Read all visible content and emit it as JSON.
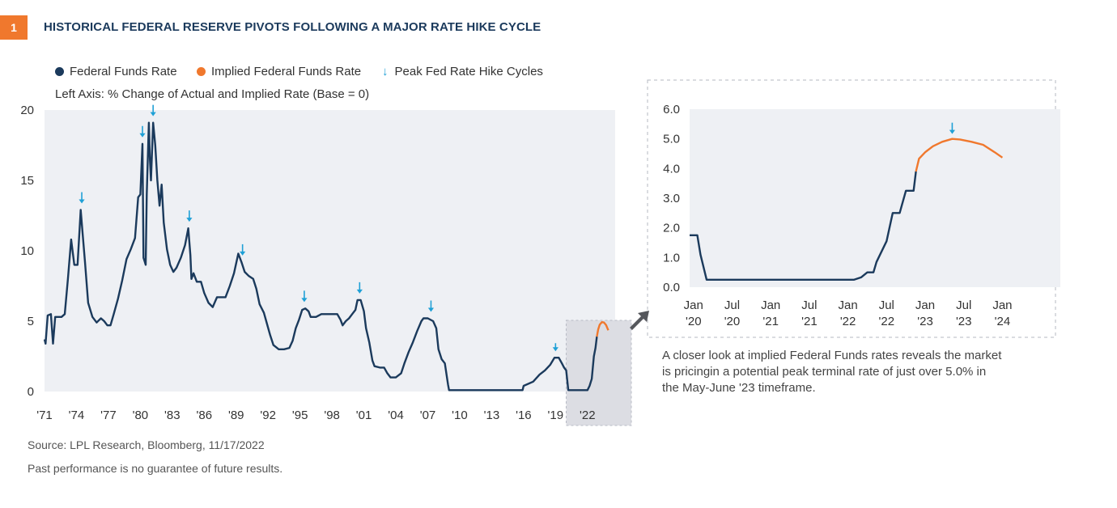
{
  "figure_number": "1",
  "title": "HISTORICAL FEDERAL RESERVE PIVOTS FOLLOWING A MAJOR RATE HIKE CYCLE",
  "legend": [
    {
      "label": "Federal Funds Rate",
      "color": "#1b3a5c",
      "marker": "dot"
    },
    {
      "label": "Implied Federal Funds Rate",
      "color": "#f0782d",
      "marker": "dot"
    },
    {
      "label": "Peak Fed Rate Hike Cycles",
      "color": "#1fa0d6",
      "marker": "down-arrow-icon"
    }
  ],
  "axis_note": "Left Axis: % Change of Actual and Implied Rate (Base = 0)",
  "colors": {
    "ffr": "#1b3a5c",
    "implied": "#f0782d",
    "peak_arrow": "#1fa0d6",
    "plot_bg": "#eef0f4",
    "highlight_bg": "#dcdde3",
    "accent": "#f0782d"
  },
  "chart_data": [
    {
      "type": "line",
      "xlim": [
        1971,
        2024.6
      ],
      "ylim": [
        0,
        20
      ],
      "yticks": [
        0,
        5,
        10,
        15,
        20
      ],
      "xticks": [
        {
          "x": 1971,
          "label": "'71"
        },
        {
          "x": 1974,
          "label": "'74"
        },
        {
          "x": 1977,
          "label": "'77"
        },
        {
          "x": 1980,
          "label": "'80"
        },
        {
          "x": 1983,
          "label": "'83"
        },
        {
          "x": 1986,
          "label": "'86"
        },
        {
          "x": 1989,
          "label": "'89"
        },
        {
          "x": 1992,
          "label": "'92"
        },
        {
          "x": 1995,
          "label": "'95"
        },
        {
          "x": 1998,
          "label": "'98"
        },
        {
          "x": 2001,
          "label": "'01"
        },
        {
          "x": 2004,
          "label": "'04"
        },
        {
          "x": 2007,
          "label": "'07"
        },
        {
          "x": 2010,
          "label": "'10"
        },
        {
          "x": 2013,
          "label": "'13"
        },
        {
          "x": 2016,
          "label": "'16"
        },
        {
          "x": 2019,
          "label": "'19"
        },
        {
          "x": 2022,
          "label": "'22"
        }
      ],
      "highlight_range": [
        2020.0,
        2024.6
      ],
      "series": [
        {
          "name": "Federal Funds Rate",
          "x": [
            1971.0,
            1971.1,
            1971.3,
            1971.6,
            1971.8,
            1972.0,
            1972.3,
            1972.6,
            1972.9,
            1973.2,
            1973.5,
            1973.8,
            1974.1,
            1974.4,
            1974.6,
            1974.8,
            1975.1,
            1975.5,
            1975.9,
            1976.3,
            1976.6,
            1976.9,
            1977.2,
            1977.5,
            1977.9,
            1978.3,
            1978.7,
            1979.1,
            1979.5,
            1979.8,
            1980.0,
            1980.2,
            1980.3,
            1980.5,
            1980.6,
            1980.8,
            1980.9,
            1981.0,
            1981.2,
            1981.4,
            1981.6,
            1981.8,
            1982.0,
            1982.2,
            1982.5,
            1982.8,
            1983.1,
            1983.4,
            1983.8,
            1984.2,
            1984.5,
            1984.7,
            1984.8,
            1985.0,
            1985.3,
            1985.7,
            1986.0,
            1986.4,
            1986.8,
            1987.2,
            1987.6,
            1988.0,
            1988.4,
            1988.8,
            1989.2,
            1989.5,
            1989.8,
            1990.2,
            1990.6,
            1990.9,
            1991.2,
            1991.6,
            1991.9,
            1992.2,
            1992.5,
            1993.0,
            1993.5,
            1994.0,
            1994.3,
            1994.6,
            1994.9,
            1995.2,
            1995.5,
            1995.8,
            1996.0,
            1996.5,
            1997.0,
            1997.5,
            1998.0,
            1998.5,
            1998.8,
            1999.0,
            1999.3,
            1999.6,
            1999.9,
            2000.2,
            2000.4,
            2000.7,
            2001.0,
            2001.2,
            2001.5,
            2001.8,
            2002.0,
            2002.5,
            2002.9,
            2003.2,
            2003.5,
            2004.0,
            2004.5,
            2004.8,
            2005.2,
            2005.6,
            2006.0,
            2006.4,
            2006.6,
            2007.0,
            2007.5,
            2007.8,
            2008.0,
            2008.3,
            2008.6,
            2008.9,
            2009.0,
            2010.0,
            2012.0,
            2014.0,
            2015.9,
            2016.0,
            2016.9,
            2017.5,
            2018.0,
            2018.5,
            2018.9,
            2019.3,
            2019.6,
            2019.8,
            2020.0,
            2020.2,
            2021.0,
            2022.0,
            2022.2,
            2022.4,
            2022.5,
            2022.6,
            2022.75,
            2022.88
          ],
          "values": [
            3.7,
            3.4,
            5.4,
            5.5,
            3.4,
            5.3,
            5.3,
            5.3,
            5.5,
            8.0,
            10.8,
            9.0,
            9.0,
            12.9,
            11.0,
            9.2,
            6.3,
            5.3,
            4.9,
            5.2,
            5.0,
            4.7,
            4.7,
            5.5,
            6.6,
            7.9,
            9.4,
            10.1,
            10.9,
            13.8,
            14.0,
            17.6,
            9.5,
            9.0,
            14.0,
            19.1,
            16.5,
            15.0,
            19.1,
            17.5,
            15.0,
            13.2,
            14.7,
            12.0,
            10.1,
            9.0,
            8.5,
            8.8,
            9.5,
            10.4,
            11.6,
            9.7,
            8.0,
            8.4,
            7.8,
            7.8,
            7.0,
            6.3,
            6.0,
            6.7,
            6.7,
            6.7,
            7.5,
            8.4,
            9.8,
            9.2,
            8.5,
            8.2,
            8.0,
            7.3,
            6.2,
            5.6,
            4.8,
            4.0,
            3.3,
            3.0,
            3.0,
            3.1,
            3.6,
            4.5,
            5.1,
            5.8,
            5.9,
            5.7,
            5.3,
            5.3,
            5.5,
            5.5,
            5.5,
            5.5,
            5.1,
            4.7,
            5.0,
            5.2,
            5.5,
            5.8,
            6.5,
            6.5,
            5.7,
            4.5,
            3.5,
            2.2,
            1.8,
            1.7,
            1.7,
            1.3,
            1.0,
            1.0,
            1.3,
            2.0,
            2.8,
            3.5,
            4.3,
            5.0,
            5.2,
            5.2,
            5.0,
            4.5,
            3.0,
            2.3,
            2.0,
            0.5,
            0.1,
            0.1,
            0.1,
            0.1,
            0.1,
            0.4,
            0.7,
            1.2,
            1.5,
            1.9,
            2.4,
            2.4,
            2.0,
            1.7,
            1.5,
            0.1,
            0.1,
            0.1,
            0.4,
            0.9,
            1.7,
            2.5,
            3.1,
            3.9
          ]
        },
        {
          "name": "Implied Federal Funds Rate",
          "x": [
            2022.88,
            2023.0,
            2023.15,
            2023.35,
            2023.55,
            2023.75,
            2023.95
          ],
          "values": [
            3.9,
            4.4,
            4.75,
            4.93,
            4.9,
            4.72,
            4.35
          ]
        }
      ],
      "peak_markers": [
        1974.5,
        1980.2,
        1981.2,
        1984.6,
        1989.6,
        1995.4,
        2000.6,
        2007.3,
        2019.0
      ],
      "peak_marker_small": [
        2019.0
      ]
    },
    {
      "type": "line",
      "xlim": [
        2019.95,
        2024.75
      ],
      "ylim": [
        0,
        6
      ],
      "yticks": [
        {
          "y": 0,
          "label": "0.0"
        },
        {
          "y": 1,
          "label": "1.0"
        },
        {
          "y": 2,
          "label": "2.0"
        },
        {
          "y": 3,
          "label": "3.0"
        },
        {
          "y": 4,
          "label": "4.0"
        },
        {
          "y": 5,
          "label": "5.0"
        },
        {
          "y": 6,
          "label": "6.0"
        }
      ],
      "xticks": [
        {
          "x": 2020.0,
          "month": "Jan",
          "year": "'20"
        },
        {
          "x": 2020.5,
          "month": "Jul",
          "year": "'20"
        },
        {
          "x": 2021.0,
          "month": "Jan",
          "year": "'21"
        },
        {
          "x": 2021.5,
          "month": "Jul",
          "year": "'21"
        },
        {
          "x": 2022.0,
          "month": "Jan",
          "year": "'22"
        },
        {
          "x": 2022.5,
          "month": "Jul",
          "year": "'22"
        },
        {
          "x": 2023.0,
          "month": "Jan",
          "year": "'23"
        },
        {
          "x": 2023.5,
          "month": "Jul",
          "year": "'23"
        },
        {
          "x": 2024.0,
          "month": "Jan",
          "year": "'24"
        }
      ],
      "series": [
        {
          "name": "Federal Funds Rate",
          "x": [
            2019.95,
            2020.05,
            2020.09,
            2020.17,
            2021.0,
            2022.0,
            2022.08,
            2022.17,
            2022.25,
            2022.33,
            2022.37,
            2022.5,
            2022.58,
            2022.67,
            2022.75,
            2022.85,
            2022.88
          ],
          "values": [
            1.75,
            1.75,
            1.1,
            0.25,
            0.25,
            0.25,
            0.25,
            0.33,
            0.5,
            0.5,
            0.85,
            1.55,
            2.5,
            2.5,
            3.25,
            3.25,
            3.9
          ]
        },
        {
          "name": "Implied Federal Funds Rate",
          "x": [
            2022.88,
            2022.92,
            2023.0,
            2023.1,
            2023.22,
            2023.35,
            2023.45,
            2023.6,
            2023.75,
            2023.9,
            2024.0
          ],
          "values": [
            3.9,
            4.33,
            4.55,
            4.75,
            4.9,
            5.0,
            4.98,
            4.9,
            4.8,
            4.55,
            4.37
          ]
        }
      ],
      "peak_markers": [
        2023.35
      ]
    }
  ],
  "inset_caption": "A closer look at implied Federal Funds rates reveals the market is pricingin a potential peak terminal rate of just over 5.0% in the May-June '23 timeframe.",
  "source": "Source: LPL Research, Bloomberg,  11/17/2022",
  "disclaimer": "Past performance is no guarantee of future results."
}
